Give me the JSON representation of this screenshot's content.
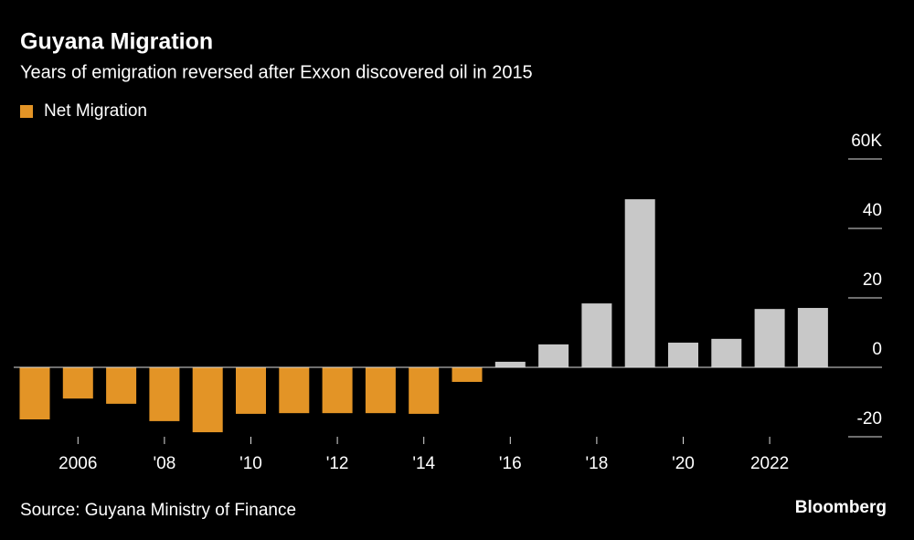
{
  "chart_data": {
    "type": "bar",
    "title": "Guyana Migration",
    "subtitle": "Years of emigration reversed after Exxon discovered oil in 2015",
    "legend": "Net Migration",
    "source": "Source: Guyana Ministry of Finance",
    "brand": "Bloomberg",
    "categories": [
      null,
      "2006",
      null,
      "'08",
      null,
      "'10",
      null,
      "'12",
      null,
      "'14",
      null,
      "'16",
      null,
      "'18",
      null,
      "'20",
      null,
      "2022",
      null
    ],
    "values": [
      -15,
      -9,
      -10.5,
      -15.5,
      -18.7,
      -13.4,
      -13.2,
      -13.2,
      -13.2,
      -13.4,
      -4.2,
      1.6,
      6.6,
      18.4,
      48.4,
      7.1,
      8.2,
      16.8,
      17.1
    ],
    "color": "#e39426",
    "positive_color": "#c8c8c8",
    "ylim": [
      -20,
      60
    ],
    "yticks": [
      -20,
      0,
      20,
      40,
      {
        "value": 60,
        "label": "60K"
      }
    ]
  }
}
